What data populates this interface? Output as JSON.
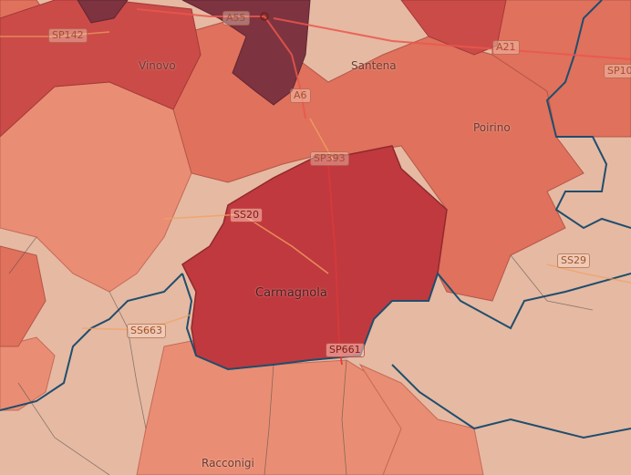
{
  "map": {
    "colors": {
      "darkest": "#7e3340",
      "dark": "#c0393f",
      "medium": "#e0715c",
      "light": "#e98e74",
      "pale": "#e6b9a2",
      "border_thick": "#1f4e6e",
      "highway": "#e9574d",
      "road": "#f1a160"
    },
    "places": [
      {
        "name": "Vinovo",
        "size": "sm"
      },
      {
        "name": "Santena",
        "size": "sm"
      },
      {
        "name": "Poirino",
        "size": "sm"
      },
      {
        "name": "Carmagnola",
        "size": "md"
      },
      {
        "name": "Racconigi",
        "size": "sm"
      }
    ],
    "roads": [
      {
        "ref": "SP142",
        "style": "normal"
      },
      {
        "ref": "A55",
        "style": "normal"
      },
      {
        "ref": "A6",
        "style": "normal"
      },
      {
        "ref": "A21",
        "style": "normal"
      },
      {
        "ref": "SP10",
        "style": "normal"
      },
      {
        "ref": "SP393",
        "style": "normal"
      },
      {
        "ref": "SS20",
        "style": "hot"
      },
      {
        "ref": "SS29",
        "style": "normal"
      },
      {
        "ref": "SP661",
        "style": "hot"
      },
      {
        "ref": "SS663",
        "style": "normal"
      }
    ]
  }
}
